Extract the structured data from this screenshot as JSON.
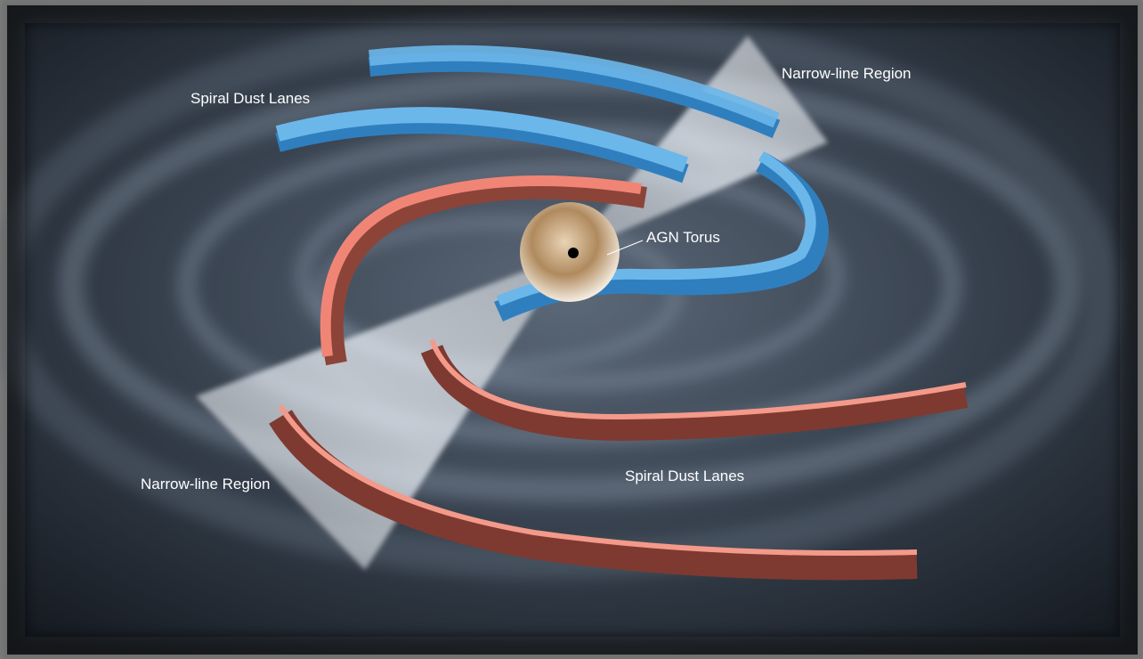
{
  "labels": [
    {
      "text": "Narrow-line Region"
    },
    {
      "text": "Spiral Dust Lanes"
    },
    {
      "text": "AGN Torus"
    },
    {
      "text": "Spiral Dust Lanes"
    },
    {
      "text": "Narrow-line Region"
    }
  ]
}
